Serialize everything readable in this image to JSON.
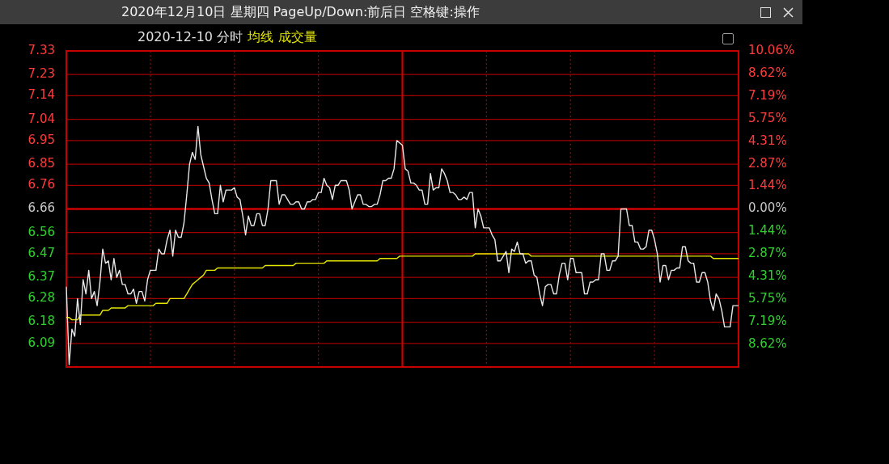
{
  "chart_data": {
    "type": "line",
    "title": "2020年12月10日 星期四 PageUp/Down:前后日 空格键:操作",
    "subtitle": "2020-12-10 分时",
    "annotations": [
      "成交量"
    ],
    "categories": [
      null,
      null,
      null,
      null,
      null,
      null,
      null,
      null,
      null,
      null,
      null,
      null,
      null,
      null,
      null,
      null,
      null,
      null,
      null,
      null,
      null,
      null,
      null,
      null,
      null,
      null,
      null,
      null,
      null,
      null,
      null,
      null,
      null,
      null,
      null,
      null,
      null,
      null,
      null,
      null,
      null,
      null,
      null,
      null,
      null,
      null,
      null,
      null,
      null,
      null,
      null,
      null,
      null,
      null,
      null,
      null,
      null,
      null,
      null,
      null,
      null,
      null,
      null,
      null,
      null,
      null,
      null,
      null,
      null,
      null,
      null,
      null,
      null,
      null,
      null,
      null,
      null,
      null,
      null,
      null,
      null,
      null,
      null,
      null,
      null,
      null,
      null,
      null,
      null,
      null,
      null,
      null,
      null,
      null,
      null,
      null,
      null,
      null,
      null,
      null,
      null,
      null,
      null,
      null,
      null,
      null,
      null,
      null,
      null,
      null,
      null,
      null,
      null,
      null,
      null,
      null,
      null,
      null,
      null,
      null,
      null,
      null,
      null,
      null,
      null,
      null,
      null,
      null,
      null,
      null,
      null,
      null,
      null,
      null,
      null,
      null,
      null,
      null,
      null,
      null,
      null,
      null,
      null,
      null,
      null,
      null,
      null,
      null,
      null,
      null,
      null,
      null,
      null,
      null,
      null,
      null,
      null,
      null,
      null,
      null,
      null,
      null,
      null,
      null,
      null,
      null,
      null,
      null,
      null,
      null,
      null,
      null,
      null,
      null,
      null,
      null,
      null,
      null,
      null,
      null,
      null,
      null,
      null,
      null,
      null,
      null,
      null,
      null,
      null,
      null,
      null,
      null,
      null,
      null,
      null,
      null,
      null,
      null,
      null,
      null,
      null,
      null,
      null,
      null,
      null,
      null,
      null,
      null,
      null,
      null,
      null,
      null,
      null,
      null,
      null,
      null,
      null,
      null,
      null,
      null,
      null,
      null,
      null,
      null,
      null,
      null,
      null,
      null,
      null,
      null,
      null,
      null,
      null,
      null,
      null,
      null,
      null,
      null,
      null,
      null,
      null
    ],
    "ylim": [
      5.99,
      7.33
    ],
    "yticks": [
      7.33,
      7.23,
      7.14,
      7.04,
      6.95,
      6.85,
      6.76,
      6.66,
      6.56,
      6.47,
      6.37,
      6.28,
      6.18,
      6.09
    ],
    "y2lim": [
      -10.06,
      10.06
    ],
    "y2ticks": [
      {
        "value": 10.06,
        "label": "10.06%"
      },
      {
        "value": 8.62,
        "label": "8.62%"
      },
      {
        "value": 7.19,
        "label": "7.19%"
      },
      {
        "value": 5.75,
        "label": "5.75%"
      },
      {
        "value": 4.31,
        "label": "4.31%"
      },
      {
        "value": 2.87,
        "label": "2.87%"
      },
      {
        "value": 1.44,
        "label": "1.44%"
      },
      {
        "value": 0,
        "label": "0.00%"
      },
      {
        "value": -1.44,
        "label": "1.44%"
      },
      {
        "value": -2.87,
        "label": "2.87%"
      },
      {
        "value": -4.31,
        "label": "4.31%"
      },
      {
        "value": -5.75,
        "label": "5.75%"
      },
      {
        "value": -7.19,
        "label": "7.19%"
      },
      {
        "value": -8.62,
        "label": "8.62%"
      }
    ],
    "grid": true,
    "marker": "none",
    "line_style": "solid",
    "ref_lines": [
      {
        "axis": "y",
        "value": 6.66
      }
    ],
    "series": [
      {
        "type": "line",
        "color": "#e8e8e8",
        "values": [
          6.33,
          6.0,
          6.15,
          6.12,
          6.28,
          6.17,
          6.36,
          6.3,
          6.4,
          6.28,
          6.31,
          6.25,
          6.35,
          6.49,
          6.43,
          6.44,
          6.36,
          6.45,
          6.37,
          6.4,
          6.34,
          6.34,
          6.3,
          6.3,
          6.32,
          6.26,
          6.31,
          6.31,
          6.27,
          6.36,
          6.4,
          6.4,
          6.4,
          6.49,
          6.47,
          6.47,
          6.53,
          6.57,
          6.46,
          6.57,
          6.54,
          6.54,
          6.6,
          6.72,
          6.85,
          6.9,
          6.87,
          7.01,
          6.89,
          6.84,
          6.79,
          6.77,
          6.7,
          6.64,
          6.64,
          6.76,
          6.69,
          6.74,
          6.74,
          6.74,
          6.75,
          6.71,
          6.7,
          6.63,
          6.55,
          6.63,
          6.59,
          6.59,
          6.64,
          6.64,
          6.59,
          6.59,
          6.66,
          6.78,
          6.78,
          6.78,
          6.68,
          6.72,
          6.72,
          6.7,
          6.68,
          6.68,
          6.69,
          6.69,
          6.66,
          6.66,
          6.69,
          6.69,
          6.7,
          6.7,
          6.73,
          6.73,
          6.79,
          6.76,
          6.75,
          6.7,
          6.76,
          6.76,
          6.78,
          6.78,
          6.78,
          6.74,
          6.66,
          6.69,
          6.72,
          6.72,
          6.68,
          6.68,
          6.67,
          6.67,
          6.68,
          6.68,
          6.72,
          6.78,
          6.78,
          6.79,
          6.79,
          6.83,
          6.95,
          6.94,
          6.93,
          6.83,
          6.82,
          6.77,
          6.77,
          6.76,
          6.74,
          6.74,
          6.68,
          6.68,
          6.81,
          6.74,
          6.75,
          6.75,
          6.83,
          6.81,
          6.78,
          6.73,
          6.73,
          6.72,
          6.7,
          6.7,
          6.71,
          6.7,
          6.73,
          6.73,
          6.58,
          6.66,
          6.63,
          6.58,
          6.58,
          6.58,
          6.55,
          6.53,
          6.44,
          6.44,
          6.46,
          6.48,
          6.39,
          6.49,
          6.48,
          6.52,
          6.47,
          6.47,
          6.43,
          6.44,
          6.44,
          6.38,
          6.37,
          6.3,
          6.25,
          6.33,
          6.34,
          6.34,
          6.3,
          6.3,
          6.38,
          6.43,
          6.43,
          6.36,
          6.45,
          6.45,
          6.39,
          6.39,
          6.39,
          6.3,
          6.3,
          6.35,
          6.35,
          6.36,
          6.36,
          6.47,
          6.47,
          6.4,
          6.4,
          6.44,
          6.44,
          6.46,
          6.66,
          6.66,
          6.66,
          6.59,
          6.59,
          6.52,
          6.52,
          6.49,
          6.49,
          6.5,
          6.57,
          6.57,
          6.53,
          6.47,
          6.35,
          6.42,
          6.42,
          6.36,
          6.4,
          6.4,
          6.41,
          6.41,
          6.5,
          6.5,
          6.44,
          6.43,
          6.43,
          6.35,
          6.35,
          6.39,
          6.39,
          6.35,
          6.27,
          6.23,
          6.3,
          6.28,
          6.23,
          6.16,
          6.16,
          6.16,
          6.25,
          6.25,
          6.25
        ]
      },
      {
        "name": "均线",
        "color": "#e6e600",
        "values": [
          6.2,
          6.2,
          6.19,
          6.19,
          6.19,
          6.21,
          6.21,
          6.21,
          6.21,
          6.21,
          6.21,
          6.21,
          6.21,
          6.23,
          6.23,
          6.23,
          6.24,
          6.24,
          6.24,
          6.24,
          6.24,
          6.24,
          6.25,
          6.25,
          6.25,
          6.25,
          6.25,
          6.25,
          6.25,
          6.25,
          6.25,
          6.25,
          6.26,
          6.26,
          6.26,
          6.26,
          6.26,
          6.28,
          6.28,
          6.28,
          6.28,
          6.28,
          6.28,
          6.3,
          6.32,
          6.34,
          6.35,
          6.36,
          6.37,
          6.38,
          6.4,
          6.4,
          6.4,
          6.4,
          6.41,
          6.41,
          6.41,
          6.41,
          6.41,
          6.41,
          6.41,
          6.41,
          6.41,
          6.41,
          6.41,
          6.41,
          6.41,
          6.41,
          6.41,
          6.41,
          6.41,
          6.42,
          6.42,
          6.42,
          6.42,
          6.42,
          6.42,
          6.42,
          6.42,
          6.42,
          6.42,
          6.42,
          6.43,
          6.43,
          6.43,
          6.43,
          6.43,
          6.43,
          6.43,
          6.43,
          6.43,
          6.43,
          6.43,
          6.44,
          6.44,
          6.44,
          6.44,
          6.44,
          6.44,
          6.44,
          6.44,
          6.44,
          6.44,
          6.44,
          6.44,
          6.44,
          6.44,
          6.44,
          6.44,
          6.44,
          6.44,
          6.44,
          6.45,
          6.45,
          6.45,
          6.45,
          6.45,
          6.45,
          6.45,
          6.46,
          6.46,
          6.46,
          6.46,
          6.46,
          6.46,
          6.46,
          6.46,
          6.46,
          6.46,
          6.46,
          6.46,
          6.46,
          6.46,
          6.46,
          6.46,
          6.46,
          6.46,
          6.46,
          6.46,
          6.46,
          6.46,
          6.46,
          6.46,
          6.46,
          6.46,
          6.46,
          6.47,
          6.47,
          6.47,
          6.47,
          6.47,
          6.47,
          6.47,
          6.47,
          6.47,
          6.47,
          6.47,
          6.47,
          6.47,
          6.47,
          6.47,
          6.47,
          6.47,
          6.47,
          6.47,
          6.47,
          6.46,
          6.46,
          6.46,
          6.46,
          6.46,
          6.46,
          6.46,
          6.46,
          6.46,
          6.46,
          6.46,
          6.46,
          6.46,
          6.46,
          6.46,
          6.46,
          6.46,
          6.46,
          6.46,
          6.46,
          6.46,
          6.46,
          6.46,
          6.46,
          6.46,
          6.46,
          6.46,
          6.46,
          6.46,
          6.46,
          6.46,
          6.46,
          6.46,
          6.46,
          6.46,
          6.46,
          6.46,
          6.46,
          6.46,
          6.46,
          6.46,
          6.46,
          6.46,
          6.46,
          6.46,
          6.46,
          6.46,
          6.46,
          6.46,
          6.46,
          6.46,
          6.46,
          6.46,
          6.46,
          6.46,
          6.46,
          6.46,
          6.46,
          6.46,
          6.46,
          6.46,
          6.46,
          6.46,
          6.46,
          6.46,
          6.45,
          6.45,
          6.45,
          6.45,
          6.45,
          6.45,
          6.45,
          6.45,
          6.45,
          6.45
        ]
      }
    ]
  }
}
